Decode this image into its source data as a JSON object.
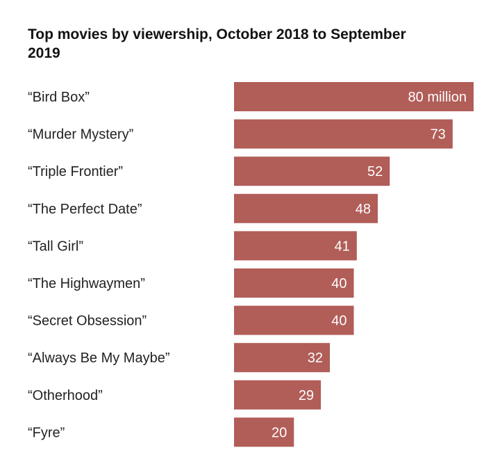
{
  "chart_data": {
    "type": "bar",
    "orientation": "horizontal",
    "title": "Top movies by viewership, October 2018 to September 2019",
    "xlabel": "",
    "ylabel": "",
    "unit": "million",
    "xlim": [
      0,
      80
    ],
    "grid": false,
    "legend": "none",
    "categories": [
      "“Bird Box”",
      "“Murder Mystery”",
      "“Triple Frontier”",
      "“The Perfect Date”",
      "“Tall Girl”",
      "“The Highwaymen”",
      "“Secret Obsession”",
      "“Always Be My Maybe”",
      "“Otherhood”",
      "“Fyre”"
    ],
    "values": [
      80,
      73,
      52,
      48,
      41,
      40,
      40,
      32,
      29,
      20
    ],
    "value_labels": [
      "80 million",
      "73",
      "52",
      "48",
      "41",
      "40",
      "40",
      "32",
      "29",
      "20"
    ],
    "colors": {
      "bar": "#b15d58",
      "label_inside": "#ffffff",
      "label_outside": "#222222"
    }
  }
}
